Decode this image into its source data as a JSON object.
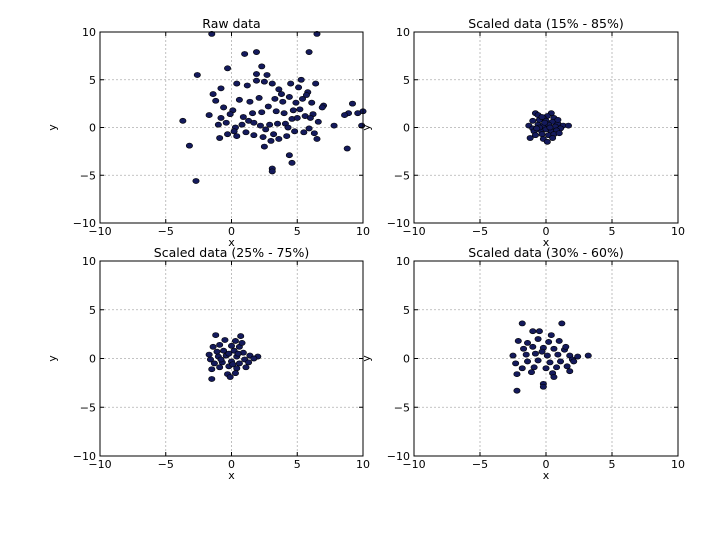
{
  "chart_data": [
    {
      "type": "scatter",
      "title": "Raw data",
      "xlabel": "x",
      "ylabel": "y",
      "xlim": [
        -10,
        10
      ],
      "ylim": [
        -10,
        10
      ],
      "xticks": [
        -10,
        -5,
        0,
        5,
        10
      ],
      "yticks": [
        -10,
        -5,
        0,
        5,
        10
      ],
      "grid": true,
      "marker_color": "#141a5c",
      "points": [
        [
          -1.5,
          9.8
        ],
        [
          6.5,
          9.8
        ],
        [
          1.0,
          7.7
        ],
        [
          1.9,
          7.9
        ],
        [
          5.9,
          7.9
        ],
        [
          -2.6,
          5.5
        ],
        [
          -0.3,
          6.2
        ],
        [
          2.3,
          6.4
        ],
        [
          1.9,
          5.6
        ],
        [
          2.7,
          5.5
        ],
        [
          5.3,
          5.0
        ],
        [
          6.4,
          4.6
        ],
        [
          7.0,
          2.3
        ],
        [
          6.9,
          2.1
        ],
        [
          9.2,
          2.5
        ],
        [
          10.0,
          1.7
        ],
        [
          9.6,
          1.5
        ],
        [
          8.9,
          1.5
        ],
        [
          8.6,
          1.3
        ],
        [
          -3.7,
          0.7
        ],
        [
          -3.2,
          -1.9
        ],
        [
          -2.7,
          -5.6
        ],
        [
          -0.4,
          0.5
        ],
        [
          0.3,
          0.0
        ],
        [
          0.8,
          0.3
        ],
        [
          1.3,
          0.7
        ],
        [
          1.7,
          0.5
        ],
        [
          2.2,
          0.2
        ],
        [
          2.9,
          0.3
        ],
        [
          3.5,
          0.4
        ],
        [
          4.1,
          0.4
        ],
        [
          4.6,
          0.9
        ],
        [
          5.0,
          1.0
        ],
        [
          5.6,
          1.2
        ],
        [
          6.2,
          1.4
        ],
        [
          -1.7,
          1.3
        ],
        [
          -1.2,
          2.8
        ],
        [
          -0.6,
          2.1
        ],
        [
          0.1,
          1.8
        ],
        [
          0.6,
          2.9
        ],
        [
          1.4,
          2.7
        ],
        [
          2.1,
          3.1
        ],
        [
          2.8,
          2.2
        ],
        [
          3.3,
          3.0
        ],
        [
          3.9,
          2.7
        ],
        [
          4.4,
          3.2
        ],
        [
          4.9,
          2.6
        ],
        [
          5.4,
          3.0
        ],
        [
          5.8,
          3.7
        ],
        [
          6.1,
          2.6
        ],
        [
          -1.4,
          3.5
        ],
        [
          -0.8,
          4.1
        ],
        [
          0.4,
          4.6
        ],
        [
          1.2,
          4.4
        ],
        [
          2.5,
          4.8
        ],
        [
          3.1,
          4.6
        ],
        [
          3.6,
          4.0
        ],
        [
          4.5,
          4.6
        ],
        [
          5.1,
          4.2
        ],
        [
          5.7,
          3.4
        ],
        [
          -0.9,
          -1.1
        ],
        [
          -0.3,
          -0.7
        ],
        [
          0.4,
          -0.9
        ],
        [
          1.1,
          -0.5
        ],
        [
          1.7,
          -0.8
        ],
        [
          2.4,
          -1.0
        ],
        [
          3.0,
          -1.4
        ],
        [
          3.6,
          -1.2
        ],
        [
          4.2,
          -0.9
        ],
        [
          4.8,
          -0.4
        ],
        [
          5.5,
          -0.5
        ],
        [
          6.3,
          -0.6
        ],
        [
          6.5,
          -1.2
        ],
        [
          2.6,
          -0.2
        ],
        [
          3.2,
          -0.7
        ],
        [
          3.1,
          -4.3
        ],
        [
          3.1,
          -4.6
        ],
        [
          4.4,
          -2.9
        ],
        [
          4.6,
          -3.7
        ],
        [
          2.5,
          -2.0
        ],
        [
          8.8,
          -2.2
        ],
        [
          -0.8,
          1.0
        ],
        [
          -0.1,
          1.4
        ],
        [
          0.9,
          1.1
        ],
        [
          1.6,
          1.5
        ],
        [
          2.3,
          1.6
        ],
        [
          3.4,
          1.7
        ],
        [
          4.0,
          1.5
        ],
        [
          4.7,
          1.8
        ],
        [
          5.2,
          1.9
        ],
        [
          6.0,
          1.0
        ],
        [
          6.6,
          0.6
        ],
        [
          7.8,
          0.2
        ],
        [
          9.9,
          0.2
        ],
        [
          4.3,
          0.0
        ],
        [
          1.9,
          4.9
        ],
        [
          3.8,
          3.5
        ],
        [
          0.2,
          -0.4
        ],
        [
          -1.0,
          0.3
        ],
        [
          5.9,
          -0.1
        ]
      ]
    },
    {
      "type": "scatter",
      "title": "Scaled data (15% - 85%)",
      "xlabel": "x",
      "ylabel": "y",
      "xlim": [
        -10,
        10
      ],
      "ylim": [
        -10,
        10
      ],
      "xticks": [
        -10,
        -5,
        0,
        5,
        10
      ],
      "yticks": [
        -10,
        -5,
        0,
        5,
        10
      ],
      "grid": true,
      "marker_color": "#141a5c",
      "points": [
        [
          -0.8,
          1.5
        ],
        [
          -0.6,
          1.3
        ],
        [
          0.4,
          1.5
        ],
        [
          0.1,
          1.2
        ],
        [
          -0.2,
          1.0
        ],
        [
          0.6,
          1.0
        ],
        [
          -1.0,
          0.7
        ],
        [
          -0.5,
          0.8
        ],
        [
          0.0,
          0.7
        ],
        [
          0.5,
          0.6
        ],
        [
          0.9,
          0.4
        ],
        [
          1.3,
          0.2
        ],
        [
          1.7,
          0.2
        ],
        [
          -1.3,
          0.2
        ],
        [
          -1.0,
          -0.1
        ],
        [
          -0.6,
          0.3
        ],
        [
          -0.2,
          0.2
        ],
        [
          0.2,
          0.3
        ],
        [
          0.7,
          0.1
        ],
        [
          1.1,
          -0.1
        ],
        [
          -0.9,
          -0.4
        ],
        [
          -0.4,
          -0.3
        ],
        [
          0.0,
          -0.2
        ],
        [
          0.4,
          -0.4
        ],
        [
          0.8,
          -0.3
        ],
        [
          -0.8,
          -0.8
        ],
        [
          -0.3,
          -0.7
        ],
        [
          0.2,
          -0.8
        ],
        [
          0.6,
          -0.7
        ],
        [
          -1.2,
          -1.1
        ],
        [
          -0.2,
          -1.2
        ],
        [
          0.5,
          -1.1
        ],
        [
          0.1,
          -1.5
        ],
        [
          -0.5,
          0.0
        ],
        [
          0.3,
          0.0
        ],
        [
          -0.1,
          0.5
        ],
        [
          0.9,
          0.8
        ],
        [
          -0.7,
          -0.1
        ],
        [
          1.0,
          -0.6
        ],
        [
          -0.3,
          1.1
        ]
      ]
    },
    {
      "type": "scatter",
      "title": "Scaled data (25% - 75%)",
      "xlabel": "x",
      "ylabel": "y",
      "xlim": [
        -10,
        10
      ],
      "ylim": [
        -10,
        10
      ],
      "xticks": [
        -10,
        -5,
        0,
        5,
        10
      ],
      "yticks": [
        -10,
        -5,
        0,
        5,
        10
      ],
      "grid": true,
      "marker_color": "#141a5c",
      "points": [
        [
          -1.2,
          2.4
        ],
        [
          0.7,
          2.3
        ],
        [
          -0.5,
          1.9
        ],
        [
          0.3,
          1.8
        ],
        [
          -1.4,
          1.2
        ],
        [
          -0.9,
          1.4
        ],
        [
          0.0,
          1.3
        ],
        [
          0.6,
          1.2
        ],
        [
          -1.1,
          0.7
        ],
        [
          -0.6,
          0.8
        ],
        [
          0.2,
          0.8
        ],
        [
          0.9,
          0.6
        ],
        [
          1.4,
          0.3
        ],
        [
          2.0,
          0.2
        ],
        [
          -1.6,
          -0.1
        ],
        [
          -1.0,
          0.2
        ],
        [
          -0.4,
          0.3
        ],
        [
          0.4,
          0.2
        ],
        [
          1.0,
          -0.1
        ],
        [
          -1.3,
          -0.5
        ],
        [
          -0.7,
          -0.4
        ],
        [
          0.0,
          -0.3
        ],
        [
          0.6,
          -0.5
        ],
        [
          1.3,
          -0.4
        ],
        [
          -1.5,
          -1.1
        ],
        [
          -0.9,
          -0.9
        ],
        [
          -0.2,
          -0.8
        ],
        [
          0.4,
          -1.0
        ],
        [
          1.1,
          -0.9
        ],
        [
          -1.5,
          -2.1
        ],
        [
          -0.3,
          -1.6
        ],
        [
          0.3,
          -1.5
        ],
        [
          -0.1,
          -1.9
        ],
        [
          0.5,
          0.5
        ],
        [
          -0.2,
          0.5
        ],
        [
          1.7,
          0.0
        ],
        [
          -0.8,
          -0.1
        ],
        [
          0.8,
          1.6
        ],
        [
          -1.7,
          0.4
        ],
        [
          0.1,
          -0.6
        ]
      ]
    },
    {
      "type": "scatter",
      "title": "Scaled data (30% - 60%)",
      "xlabel": "x",
      "ylabel": "y",
      "xlim": [
        -10,
        10
      ],
      "ylim": [
        -10,
        10
      ],
      "xticks": [
        -10,
        -5,
        0,
        5,
        10
      ],
      "yticks": [
        -10,
        -5,
        0,
        5,
        10
      ],
      "grid": true,
      "marker_color": "#141a5c",
      "points": [
        [
          -1.8,
          3.6
        ],
        [
          1.2,
          3.6
        ],
        [
          -1.0,
          2.8
        ],
        [
          -0.5,
          2.8
        ],
        [
          0.4,
          2.4
        ],
        [
          -2.1,
          1.8
        ],
        [
          -1.4,
          1.6
        ],
        [
          -0.6,
          2.0
        ],
        [
          0.2,
          1.7
        ],
        [
          1.0,
          1.8
        ],
        [
          -1.7,
          1.0
        ],
        [
          -1.0,
          1.2
        ],
        [
          -0.2,
          1.1
        ],
        [
          0.6,
          1.0
        ],
        [
          1.4,
          0.9
        ],
        [
          -2.5,
          0.3
        ],
        [
          -1.5,
          0.4
        ],
        [
          -0.8,
          0.5
        ],
        [
          0.1,
          0.3
        ],
        [
          0.9,
          0.4
        ],
        [
          1.8,
          0.3
        ],
        [
          2.4,
          0.2
        ],
        [
          3.2,
          0.3
        ],
        [
          -2.3,
          -0.5
        ],
        [
          -1.4,
          -0.3
        ],
        [
          -0.6,
          -0.2
        ],
        [
          0.3,
          -0.4
        ],
        [
          1.1,
          -0.3
        ],
        [
          2.0,
          -0.1
        ],
        [
          -1.8,
          -1.0
        ],
        [
          -0.9,
          -0.9
        ],
        [
          0.0,
          -1.0
        ],
        [
          0.8,
          -0.9
        ],
        [
          1.6,
          -0.8
        ],
        [
          2.1,
          -0.3
        ],
        [
          -2.2,
          -1.6
        ],
        [
          -1.1,
          -1.4
        ],
        [
          0.5,
          -1.5
        ],
        [
          1.8,
          -1.3
        ],
        [
          -2.2,
          -3.3
        ],
        [
          -0.2,
          -2.6
        ],
        [
          -0.2,
          -2.9
        ],
        [
          0.6,
          -1.9
        ],
        [
          -0.3,
          0.7
        ],
        [
          1.5,
          1.2
        ]
      ]
    }
  ]
}
